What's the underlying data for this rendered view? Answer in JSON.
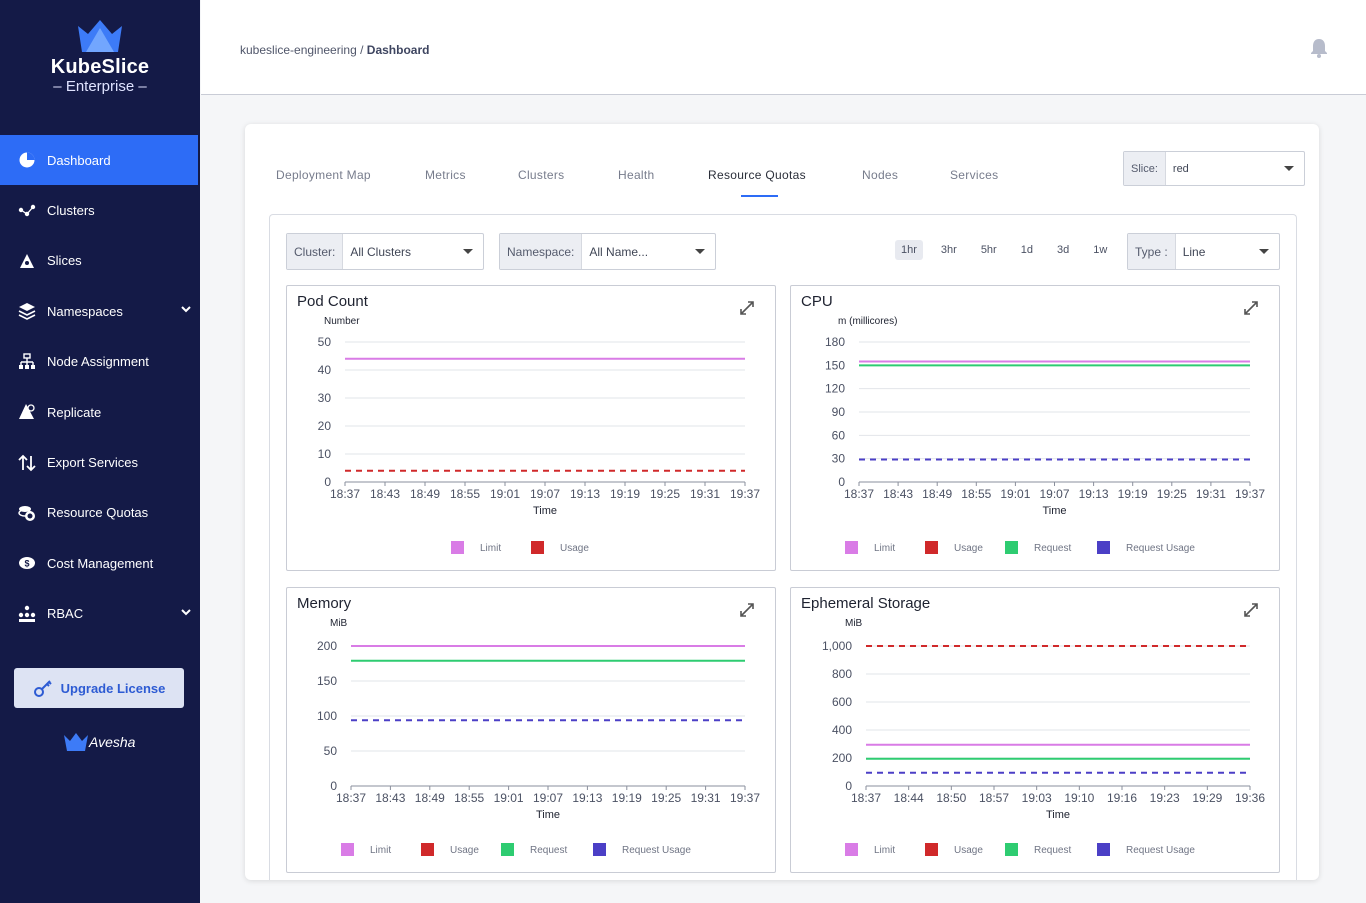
{
  "sidebar": {
    "brand_title": "KubeSlice",
    "brand_sub": "Enterprise",
    "items": [
      {
        "label": "Dashboard",
        "icon": "pie-chart-icon",
        "active": true
      },
      {
        "label": "Clusters",
        "icon": "cluster-icon"
      },
      {
        "label": "Slices",
        "icon": "slices-icon"
      },
      {
        "label": "Namespaces",
        "icon": "layers-icon",
        "expandable": true
      },
      {
        "label": "Node Assignment",
        "icon": "node-tree-icon"
      },
      {
        "label": "Replicate",
        "icon": "replicate-icon"
      },
      {
        "label": "Export Services",
        "icon": "export-arrows-icon"
      },
      {
        "label": "Resource Quotas",
        "icon": "coins-icon"
      },
      {
        "label": "Cost Management",
        "icon": "cost-icon"
      },
      {
        "label": "RBAC",
        "icon": "rbac-icon",
        "expandable": true
      }
    ],
    "upgrade_label": "Upgrade License",
    "footer_brand": "Avesha"
  },
  "header": {
    "breadcrumb_project": "kubeslice-engineering",
    "breadcrumb_sep": "/",
    "breadcrumb_page": "Dashboard"
  },
  "tabs": [
    "Deployment Map",
    "Metrics",
    "Clusters",
    "Health",
    "Resource Quotas",
    "Nodes",
    "Services"
  ],
  "active_tab": "Resource Quotas",
  "slice": {
    "label": "Slice:",
    "value": "red"
  },
  "filters": {
    "cluster_label": "Cluster:",
    "cluster_value": "All Clusters",
    "namespace_label": "Namespace:",
    "namespace_value": "All Name...",
    "type_label": "Type :",
    "type_value": "Line"
  },
  "ranges": [
    "1hr",
    "3hr",
    "5hr",
    "1d",
    "3d",
    "1w"
  ],
  "active_range": "1hr",
  "colors": {
    "limit": "#d97ce6",
    "usage": "#d0292a",
    "request": "#2ecc71",
    "request_usage": "#4b3fc6",
    "accent": "#2d6cf6",
    "sidebar": "#141a47"
  },
  "chart_data": [
    {
      "type": "line",
      "title": "Pod Count",
      "ylabel": "Number",
      "xlabel": "Time",
      "x": [
        "18:37",
        "18:43",
        "18:49",
        "18:55",
        "19:01",
        "19:07",
        "19:13",
        "19:19",
        "19:25",
        "19:31",
        "19:37"
      ],
      "yticks": [
        "0",
        "10",
        "20",
        "30",
        "40",
        "50"
      ],
      "ylim": [
        0,
        50
      ],
      "series": [
        {
          "name": "Limit",
          "value": 44,
          "dashed": false,
          "color": "#d97ce6"
        },
        {
          "name": "Usage",
          "value": 4,
          "dashed": true,
          "color": "#d0292a"
        }
      ]
    },
    {
      "type": "line",
      "title": "CPU",
      "ylabel": "m (millicores)",
      "xlabel": "Time",
      "x": [
        "18:37",
        "18:43",
        "18:49",
        "18:55",
        "19:01",
        "19:07",
        "19:13",
        "19:19",
        "19:25",
        "19:31",
        "19:37"
      ],
      "yticks": [
        "0",
        "30",
        "60",
        "90",
        "120",
        "150",
        "180"
      ],
      "ylim": [
        0,
        180
      ],
      "series": [
        {
          "name": "Limit",
          "value": 155,
          "dashed": false,
          "color": "#d97ce6"
        },
        {
          "name": "Usage",
          "value": null,
          "dashed": false,
          "color": "#d0292a"
        },
        {
          "name": "Request",
          "value": 150,
          "dashed": false,
          "color": "#2ecc71"
        },
        {
          "name": "Request Usage",
          "value": 29,
          "dashed": true,
          "color": "#4b3fc6"
        }
      ]
    },
    {
      "type": "line",
      "title": "Memory",
      "ylabel": "MiB",
      "xlabel": "Time",
      "x": [
        "18:37",
        "18:43",
        "18:49",
        "18:55",
        "19:01",
        "19:07",
        "19:13",
        "19:19",
        "19:25",
        "19:31",
        "19:37"
      ],
      "yticks": [
        "0",
        "50",
        "100",
        "150",
        "200"
      ],
      "ylim": [
        0,
        200
      ],
      "series": [
        {
          "name": "Limit",
          "value": 200,
          "dashed": false,
          "color": "#d97ce6"
        },
        {
          "name": "Usage",
          "value": null,
          "dashed": false,
          "color": "#d0292a"
        },
        {
          "name": "Request",
          "value": 179,
          "dashed": false,
          "color": "#2ecc71"
        },
        {
          "name": "Request Usage",
          "value": 94,
          "dashed": true,
          "color": "#4b3fc6"
        }
      ]
    },
    {
      "type": "line",
      "title": "Ephemeral Storage",
      "ylabel": "MiB",
      "xlabel": "Time",
      "x": [
        "18:37",
        "18:44",
        "18:50",
        "18:57",
        "19:03",
        "19:10",
        "19:16",
        "19:23",
        "19:29",
        "19:36"
      ],
      "yticks": [
        "0",
        "200",
        "400",
        "600",
        "800",
        "1,000"
      ],
      "ylim": [
        0,
        1000
      ],
      "series": [
        {
          "name": "Limit",
          "value": 295,
          "dashed": false,
          "color": "#d97ce6"
        },
        {
          "name": "Usage",
          "value": 1000,
          "dashed": true,
          "color": "#d0292a"
        },
        {
          "name": "Request",
          "value": 195,
          "dashed": false,
          "color": "#2ecc71"
        },
        {
          "name": "Request Usage",
          "value": 95,
          "dashed": true,
          "color": "#4b3fc6"
        }
      ]
    }
  ]
}
